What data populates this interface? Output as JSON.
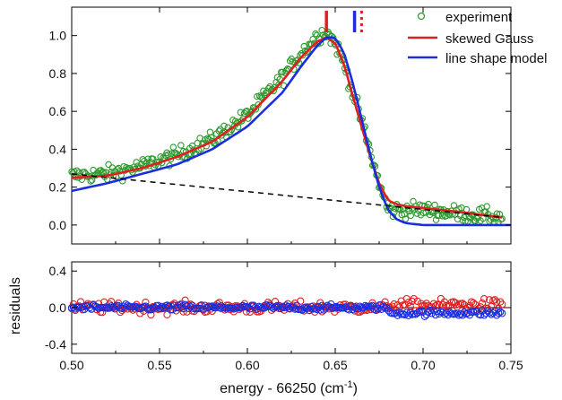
{
  "chart_data": [
    {
      "type": "scatter",
      "panel": "top",
      "xlabel": "",
      "ylabel": "",
      "xlim": [
        0.5,
        0.75
      ],
      "ylim": [
        -0.1,
        1.15
      ],
      "yticks": [
        0.0,
        0.2,
        0.4,
        0.6,
        0.8,
        1.0
      ],
      "ytick_labels": [
        "0.0",
        "0.2",
        "0.4",
        "0.6",
        "0.8",
        "1.0"
      ],
      "xticks": [
        0.5,
        0.55,
        0.6,
        0.65,
        0.7,
        0.75
      ],
      "grid": false,
      "legend_position": "top-right",
      "legend": {
        "experiment": "experiment",
        "skewed": "skewed Gauss",
        "lineshape": "line shape model"
      },
      "series": [
        {
          "name": "experiment",
          "style": "open-circle",
          "color": "#2e9a2e",
          "x_range": [
            0.5,
            0.745
          ],
          "trend_x": [
            0.5,
            0.52,
            0.54,
            0.56,
            0.58,
            0.6,
            0.62,
            0.63,
            0.64,
            0.645,
            0.65,
            0.655,
            0.66,
            0.665,
            0.67,
            0.675,
            0.68,
            0.69,
            0.7,
            0.72,
            0.745
          ],
          "trend_y": [
            0.26,
            0.27,
            0.31,
            0.37,
            0.45,
            0.58,
            0.78,
            0.9,
            1.0,
            1.02,
            0.96,
            0.85,
            0.7,
            0.55,
            0.38,
            0.22,
            0.08,
            0.08,
            0.08,
            0.06,
            0.04
          ]
        },
        {
          "name": "skewed Gauss",
          "style": "line",
          "color": "#e02020",
          "x": [
            0.5,
            0.52,
            0.54,
            0.56,
            0.58,
            0.6,
            0.62,
            0.63,
            0.64,
            0.645,
            0.65,
            0.655,
            0.66,
            0.665,
            0.67,
            0.675,
            0.68,
            0.685,
            0.69,
            0.7,
            0.72,
            0.745
          ],
          "y": [
            0.25,
            0.26,
            0.3,
            0.36,
            0.44,
            0.57,
            0.76,
            0.88,
            0.97,
            0.99,
            0.96,
            0.85,
            0.68,
            0.52,
            0.36,
            0.22,
            0.13,
            0.11,
            0.1,
            0.09,
            0.07,
            0.04
          ]
        },
        {
          "name": "line shape model",
          "style": "line",
          "color": "#1a2ee0",
          "x": [
            0.5,
            0.52,
            0.54,
            0.56,
            0.58,
            0.6,
            0.62,
            0.63,
            0.64,
            0.645,
            0.65,
            0.655,
            0.66,
            0.665,
            0.67,
            0.675,
            0.68,
            0.685,
            0.69,
            0.7,
            0.72,
            0.75
          ],
          "y": [
            0.18,
            0.22,
            0.27,
            0.32,
            0.4,
            0.52,
            0.7,
            0.83,
            0.95,
            0.99,
            0.99,
            0.91,
            0.75,
            0.56,
            0.37,
            0.2,
            0.08,
            0.03,
            0.01,
            0.0,
            0.0,
            0.0
          ]
        },
        {
          "name": "",
          "style": "dashed-line",
          "color": "#000000",
          "x": [
            0.5,
            0.745
          ],
          "y": [
            0.27,
            0.04
          ]
        }
      ],
      "markers": [
        {
          "x": 0.645,
          "color": "#e02020",
          "style": "solid"
        },
        {
          "x": 0.661,
          "color": "#1a2ee0",
          "style": "solid"
        },
        {
          "x": 0.665,
          "color": "#e02020",
          "style": "dotted"
        }
      ]
    },
    {
      "type": "scatter",
      "panel": "bottom",
      "xlabel": "energy - 66250 (cm",
      "xlabel_sup": "-1",
      "xlabel_tail": ")",
      "ylabel": "residuals",
      "xlim": [
        0.5,
        0.75
      ],
      "ylim": [
        -0.5,
        0.5
      ],
      "xticks": [
        0.5,
        0.55,
        0.6,
        0.65,
        0.7,
        0.75
      ],
      "xtick_labels": [
        "0.50",
        "0.55",
        "0.60",
        "0.65",
        "0.70",
        "0.75"
      ],
      "yticks": [
        -0.4,
        0.0,
        0.4
      ],
      "ytick_labels": [
        "-0.4",
        "0.0",
        "0.4"
      ],
      "grid": false,
      "series": [
        {
          "name": "",
          "style": "open-circle",
          "color": "#e02020",
          "x_range": [
            0.5,
            0.745
          ],
          "y_spread": 0.12
        },
        {
          "name": "",
          "style": "open-circle",
          "color": "#1a2ee0",
          "x_range": [
            0.5,
            0.745
          ],
          "y_spread": 0.06,
          "y_offset_after_0.68": -0.06
        }
      ],
      "zero_line": 0.0
    }
  ]
}
